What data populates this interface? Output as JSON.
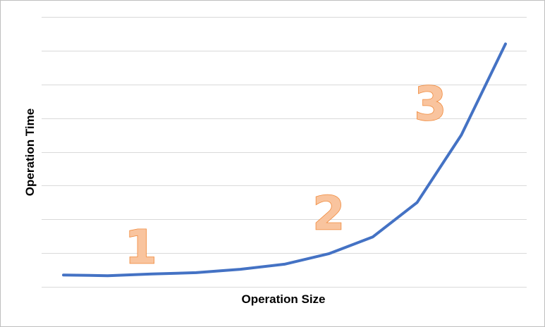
{
  "chart_data": {
    "type": "line",
    "title": "",
    "xlabel": "Operation Size",
    "ylabel": "Operation Time",
    "x": [
      1,
      2,
      3,
      4,
      5,
      6,
      7,
      8,
      9,
      10,
      11
    ],
    "series": [
      {
        "name": "",
        "values": [
          0.35,
          0.33,
          0.38,
          0.42,
          0.52,
          0.67,
          0.98,
          1.48,
          2.5,
          4.5,
          7.2
        ]
      }
    ],
    "ylim": [
      0,
      8
    ],
    "gridlines": 9,
    "grid": true,
    "legend": "none",
    "tick_labels_shown": false,
    "annotations": [
      {
        "text": "1",
        "x": 2.75,
        "y": 0.7
      },
      {
        "text": "2",
        "x": 7.0,
        "y": 1.7
      },
      {
        "text": "3",
        "x": 9.3,
        "y": 4.95
      }
    ],
    "colors": {
      "series": "#4472c4",
      "grid": "#d9d9d9",
      "annotation_fill": "#f9c49e",
      "annotation_stroke": "#f08a3c"
    }
  }
}
